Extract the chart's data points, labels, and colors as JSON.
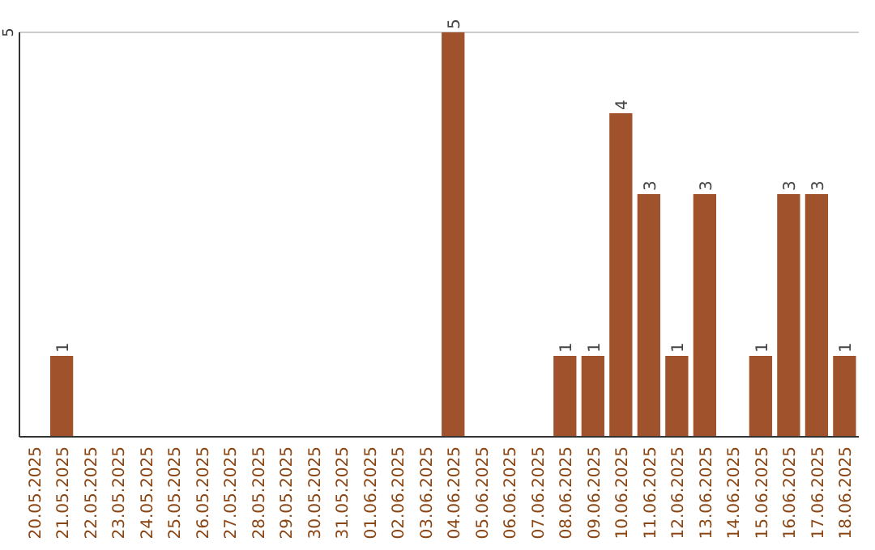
{
  "chart_data": {
    "type": "bar",
    "categories": [
      "20.05.2025",
      "21.05.2025",
      "22.05.2025",
      "23.05.2025",
      "24.05.2025",
      "25.05.2025",
      "26.05.2025",
      "27.05.2025",
      "28.05.2025",
      "29.05.2025",
      "30.05.2025",
      "31.05.2025",
      "01.06.2025",
      "02.06.2025",
      "03.06.2025",
      "04.06.2025",
      "05.06.2025",
      "06.06.2025",
      "07.06.2025",
      "08.06.2025",
      "09.06.2025",
      "10.06.2025",
      "11.06.2025",
      "12.06.2025",
      "13.06.2025",
      "14.06.2025",
      "15.06.2025",
      "16.06.2025",
      "17.06.2025",
      "18.06.2025"
    ],
    "values": [
      0,
      1,
      0,
      0,
      0,
      0,
      0,
      0,
      0,
      0,
      0,
      0,
      0,
      0,
      0,
      5,
      0,
      0,
      0,
      1,
      1,
      4,
      3,
      1,
      3,
      0,
      1,
      3,
      3,
      1
    ],
    "value_labels": [
      null,
      "1",
      null,
      null,
      null,
      null,
      null,
      null,
      null,
      null,
      null,
      null,
      null,
      null,
      null,
      "5",
      null,
      null,
      null,
      "1",
      "1",
      "4",
      "3",
      "1",
      "3",
      null,
      "1",
      "3",
      "3",
      "1"
    ],
    "color": "#a0522d",
    "ylim": [
      0,
      5
    ],
    "yticks": [
      5
    ],
    "ref_lines": [
      {
        "axis": "y",
        "value": 5,
        "color": "#cccccc"
      }
    ]
  }
}
